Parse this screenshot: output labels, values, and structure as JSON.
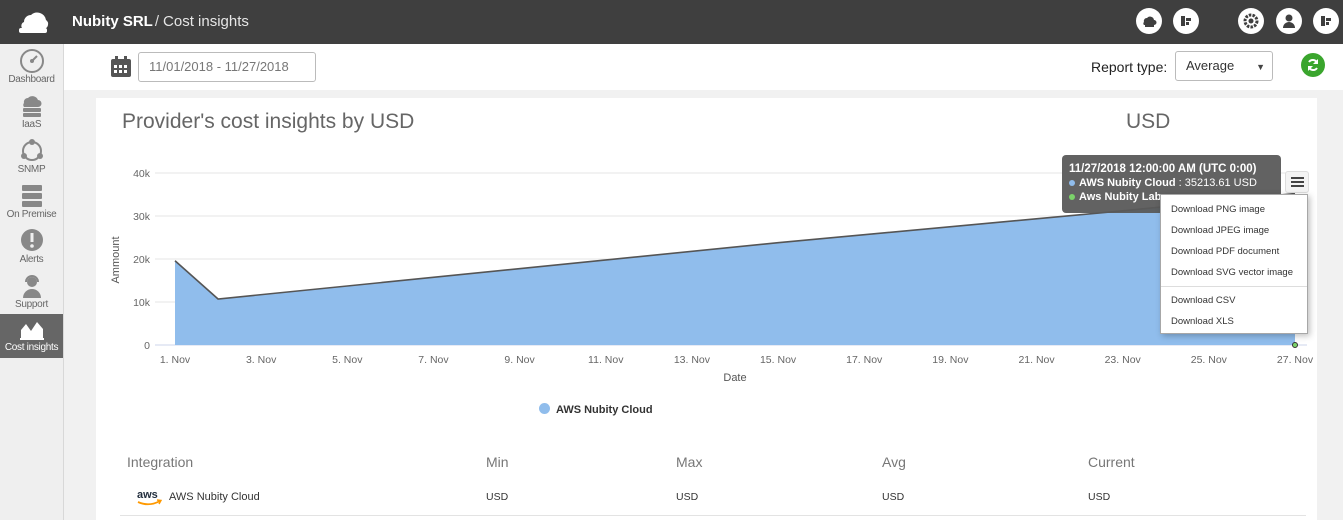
{
  "topbar": {
    "org": "Nubity SRL",
    "separator": "/",
    "page": "Cost insights",
    "icons": [
      "cloud-upload-icon",
      "nubity-logo-icon",
      "gear-icon",
      "user-icon",
      "logout-icon"
    ]
  },
  "sidebar": {
    "items": [
      {
        "label": "Dashboard",
        "icon": "gauge-icon"
      },
      {
        "label": "IaaS",
        "icon": "cloud-server-icon"
      },
      {
        "label": "SNMP",
        "icon": "network-icon"
      },
      {
        "label": "On Premise",
        "icon": "server-rack-icon"
      },
      {
        "label": "Alerts",
        "icon": "alert-icon"
      },
      {
        "label": "Support",
        "icon": "support-icon"
      },
      {
        "label": "Cost insights",
        "icon": "area-chart-icon",
        "active": true
      }
    ]
  },
  "toolbar": {
    "date_range": "11/01/2018 - 11/27/2018",
    "report_type_label": "Report type:",
    "report_type_value": "Average"
  },
  "card": {
    "title": "Provider's cost insights by USD",
    "currency": "USD"
  },
  "chart_data": {
    "type": "area",
    "xlabel": "Date",
    "ylabel": "Ammount",
    "ylim": [
      0,
      40000
    ],
    "yticks": [
      "0",
      "10k",
      "20k",
      "30k",
      "40k"
    ],
    "xticks": [
      "1. Nov",
      "3. Nov",
      "5. Nov",
      "7. Nov",
      "9. Nov",
      "11. Nov",
      "13. Nov",
      "15. Nov",
      "17. Nov",
      "19. Nov",
      "21. Nov",
      "23. Nov",
      "25. Nov",
      "27. Nov"
    ],
    "grid": true,
    "legend_placement": "bottom",
    "series": [
      {
        "name": "AWS Nubity Cloud",
        "color": "#90bdec",
        "x": [
          "1. Nov",
          "2. Nov",
          "15. Nov",
          "23. Nov",
          "27. Nov"
        ],
        "values": [
          19600,
          10700,
          23800,
          31200,
          35213.61
        ]
      },
      {
        "name": "Aws Nubity Lab",
        "color": "#7bd36a",
        "x": [
          "27. Nov"
        ],
        "values": [
          0
        ]
      }
    ],
    "tooltip": {
      "header": "11/27/2018 12:00:00 AM (UTC 0:00)",
      "rows": [
        {
          "series": "AWS Nubity Cloud",
          "text": ": 35213.61 USD"
        },
        {
          "series": "Aws Nubity Lab",
          "text": ""
        }
      ]
    },
    "export_menu": {
      "items": [
        "Download PNG image",
        "Download JPEG image",
        "Download PDF document",
        "Download SVG vector image"
      ],
      "data_items": [
        "Download CSV",
        "Download XLS"
      ]
    },
    "legend": [
      "AWS Nubity Cloud"
    ]
  },
  "table": {
    "headers": [
      "Integration",
      "Min",
      "Max",
      "Avg",
      "Current"
    ],
    "rows": [
      {
        "logo": "aws",
        "integration": "AWS Nubity Cloud",
        "min": "USD",
        "max": "USD",
        "avg": "USD",
        "current": "USD"
      }
    ]
  }
}
